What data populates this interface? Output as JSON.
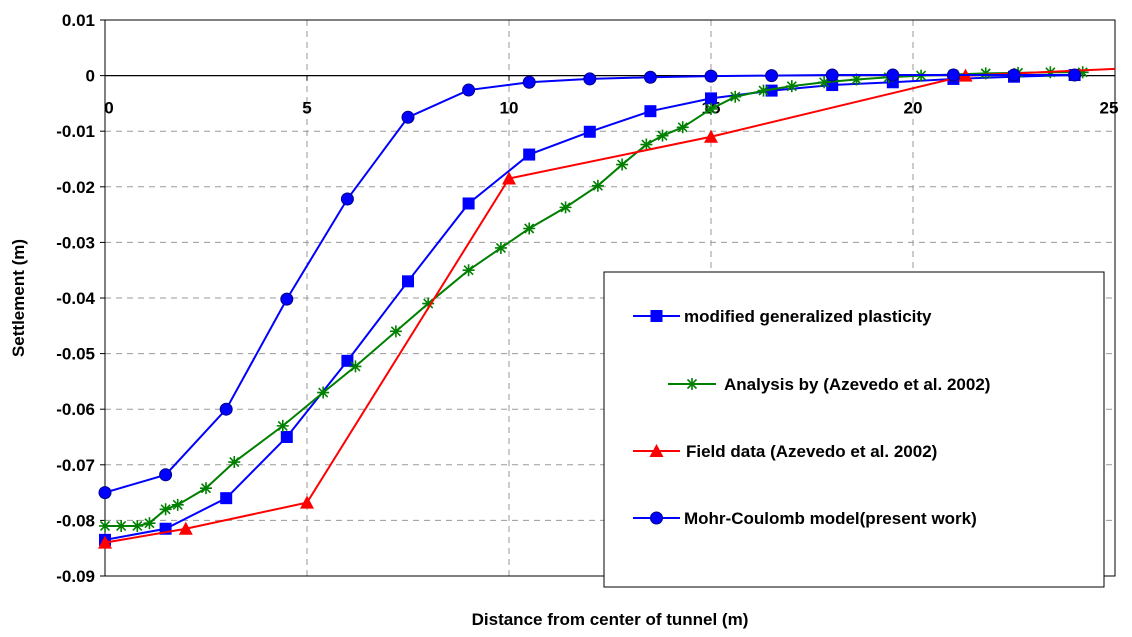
{
  "chart_data": {
    "type": "line",
    "title": "",
    "xlabel": "Distance from center of tunnel (m)",
    "ylabel": "Settlement (m)",
    "xlim": [
      0,
      25
    ],
    "ylim": [
      -0.09,
      0.01
    ],
    "x_ticks": [
      "0",
      "5",
      "10",
      "15",
      "20",
      "25"
    ],
    "x_tick_values": [
      0,
      5,
      10,
      15,
      20,
      25
    ],
    "y_ticks": [
      "0.01",
      "0",
      "-0.01",
      "-0.02",
      "-0.03",
      "-0.04",
      "-0.05",
      "-0.06",
      "-0.07",
      "-0.08",
      "-0.09"
    ],
    "y_tick_values": [
      0.01,
      0,
      -0.01,
      -0.02,
      -0.03,
      -0.04,
      -0.05,
      -0.06,
      -0.07,
      -0.08,
      -0.09
    ],
    "grid": true,
    "legend_position": "center-right",
    "series": [
      {
        "name": "modified generalized plasticity",
        "color": "#0000ff",
        "marker": "square",
        "x": [
          0,
          1.5,
          3,
          4.5,
          6,
          7.5,
          9,
          10.5,
          12,
          13.5,
          15,
          16.5,
          18,
          19.5,
          21,
          22.5,
          24
        ],
        "y": [
          -0.0835,
          -0.0815,
          -0.076,
          -0.065,
          -0.0513,
          -0.037,
          -0.023,
          -0.0142,
          -0.0101,
          -0.0064,
          -0.0041,
          -0.0027,
          -0.0017,
          -0.0012,
          -0.0006,
          -0.0002,
          0.0001
        ]
      },
      {
        "name": "Analysis by (Azevedo et al. 2002)",
        "color": "#008000",
        "marker": "star",
        "x": [
          0,
          0.4,
          0.8,
          1.1,
          1.5,
          1.8,
          2.5,
          3.2,
          4.4,
          5.4,
          6.2,
          7.2,
          8,
          9,
          9.8,
          10.5,
          11.4,
          12.2,
          12.8,
          13.4,
          13.8,
          14.3,
          15,
          15.6,
          16.3,
          17,
          17.8,
          18.6,
          19.4,
          20.2,
          21,
          21.8,
          22.6,
          23.4,
          24.2
        ],
        "y": [
          -0.081,
          -0.081,
          -0.081,
          -0.0805,
          -0.078,
          -0.0772,
          -0.0742,
          -0.0695,
          -0.063,
          -0.057,
          -0.0523,
          -0.046,
          -0.041,
          -0.035,
          -0.031,
          -0.0275,
          -0.0237,
          -0.0198,
          -0.016,
          -0.0124,
          -0.0108,
          -0.0093,
          -0.006,
          -0.0038,
          -0.0027,
          -0.0019,
          -0.0012,
          -0.0007,
          -0.0003,
          0,
          0.0002,
          0.0004,
          0.0005,
          0.0006,
          0.0006
        ]
      },
      {
        "name": "Field data (Azevedo et al. 2002)",
        "color": "#ff0000",
        "marker": "triangle",
        "x": [
          0,
          2,
          5,
          10,
          15,
          21.3,
          25
        ],
        "y": [
          -0.084,
          -0.0815,
          -0.0768,
          -0.0185,
          -0.011,
          0,
          0.0012
        ]
      },
      {
        "name": "Mohr-Coulomb model(present work)",
        "color": "#0000ff",
        "marker": "circle",
        "x": [
          0,
          1.5,
          3,
          4.5,
          6,
          7.5,
          9,
          10.5,
          12,
          13.5,
          15,
          16.5,
          18,
          19.5,
          21,
          22.5,
          24
        ],
        "y": [
          -0.075,
          -0.0718,
          -0.06,
          -0.0402,
          -0.0222,
          -0.0075,
          -0.0026,
          -0.0012,
          -0.0006,
          -0.0003,
          -0.0001,
          0,
          0.0001,
          0.0001,
          0.0001,
          0.0001,
          0.0001
        ]
      }
    ]
  }
}
